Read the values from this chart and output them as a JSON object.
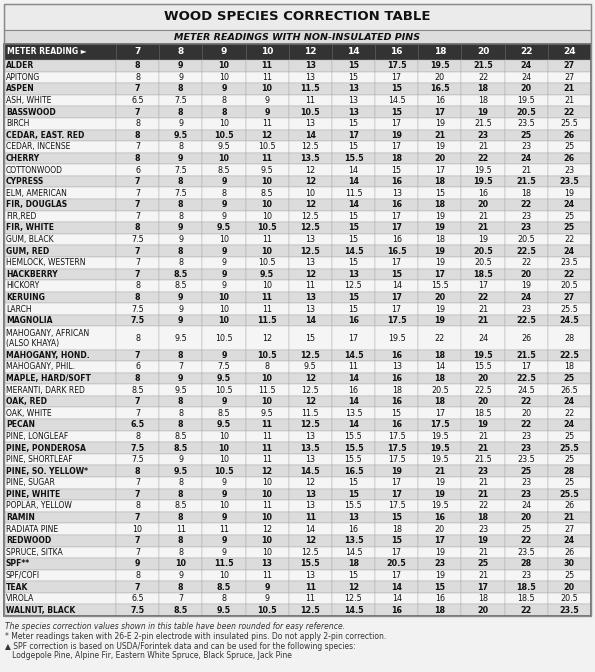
{
  "title": "WOOD SPECIES CORRECTION TABLE",
  "subtitle": "METER READINGS WITH NON-INSULATED PINS",
  "col_header": "METER READING ►",
  "columns": [
    "7",
    "8",
    "9",
    "10",
    "12",
    "14",
    "16",
    "18",
    "20",
    "22",
    "24"
  ],
  "rows": [
    {
      "name": "ALDER",
      "bold": true,
      "values": [
        "8",
        "9",
        "10",
        "11",
        "13",
        "15",
        "17.5",
        "19.5",
        "21.5",
        "24",
        "27"
      ]
    },
    {
      "name": "APITONG",
      "bold": false,
      "values": [
        "8",
        "9",
        "10",
        "11",
        "13",
        "15",
        "17",
        "20",
        "22",
        "24",
        "27"
      ]
    },
    {
      "name": "ASPEN",
      "bold": true,
      "values": [
        "7",
        "8",
        "9",
        "10",
        "11.5",
        "13",
        "15",
        "16.5",
        "18",
        "20",
        "21"
      ]
    },
    {
      "name": "ASH, WHITE",
      "bold": false,
      "values": [
        "6.5",
        "7.5",
        "8",
        "9",
        "11",
        "13",
        "14.5",
        "16",
        "18",
        "19.5",
        "21"
      ]
    },
    {
      "name": "BASSWOOD",
      "bold": true,
      "values": [
        "7",
        "8",
        "8",
        "9",
        "10.5",
        "13",
        "15",
        "17",
        "19",
        "20.5",
        "22"
      ]
    },
    {
      "name": "BIRCH",
      "bold": false,
      "values": [
        "8",
        "9",
        "10",
        "11",
        "13",
        "15",
        "17",
        "19",
        "21.5",
        "23.5",
        "25.5"
      ]
    },
    {
      "name": "CEDAR, EAST. RED",
      "bold": true,
      "values": [
        "8",
        "9.5",
        "10.5",
        "12",
        "14",
        "17",
        "19",
        "21",
        "23",
        "25",
        "26"
      ]
    },
    {
      "name": "CEDAR, INCENSE",
      "bold": false,
      "values": [
        "7",
        "8",
        "9.5",
        "10.5",
        "12.5",
        "15",
        "17",
        "19",
        "21",
        "23",
        "25"
      ]
    },
    {
      "name": "CHERRY",
      "bold": true,
      "values": [
        "8",
        "9",
        "10",
        "11",
        "13.5",
        "15.5",
        "18",
        "20",
        "22",
        "24",
        "26"
      ]
    },
    {
      "name": "COTTONWOOD",
      "bold": false,
      "values": [
        "6",
        "7.5",
        "8.5",
        "9.5",
        "12",
        "14",
        "15",
        "17",
        "19.5",
        "21",
        "23"
      ]
    },
    {
      "name": "CYPRESS",
      "bold": true,
      "values": [
        "7",
        "8",
        "9",
        "10",
        "12",
        "14",
        "16",
        "18",
        "19.5",
        "21.5",
        "23.5"
      ]
    },
    {
      "name": "ELM, AMERICAN",
      "bold": false,
      "values": [
        "7",
        "7.5",
        "8",
        "8.5",
        "10",
        "11.5",
        "13",
        "15",
        "16",
        "18",
        "19"
      ]
    },
    {
      "name": "FIR, DOUGLAS",
      "bold": true,
      "values": [
        "7",
        "8",
        "9",
        "10",
        "12",
        "14",
        "16",
        "18",
        "20",
        "22",
        "24"
      ]
    },
    {
      "name": "FIR,RED",
      "bold": false,
      "values": [
        "7",
        "8",
        "9",
        "10",
        "12.5",
        "15",
        "17",
        "19",
        "21",
        "23",
        "25"
      ]
    },
    {
      "name": "FIR, WHITE",
      "bold": true,
      "values": [
        "8",
        "9",
        "9.5",
        "10.5",
        "12.5",
        "15",
        "17",
        "19",
        "21",
        "23",
        "25"
      ]
    },
    {
      "name": "GUM, BLACK",
      "bold": false,
      "values": [
        "7.5",
        "9",
        "10",
        "11",
        "13",
        "15",
        "16",
        "18",
        "19",
        "20.5",
        "22"
      ]
    },
    {
      "name": "GUM, RED",
      "bold": true,
      "values": [
        "7",
        "8",
        "9",
        "10",
        "12.5",
        "14.5",
        "16.5",
        "19",
        "20.5",
        "22.5",
        "24"
      ]
    },
    {
      "name": "HEMLOCK, WESTERN",
      "bold": false,
      "values": [
        "7",
        "8",
        "9",
        "10.5",
        "13",
        "15",
        "17",
        "19",
        "20.5",
        "22",
        "23.5"
      ]
    },
    {
      "name": "HACKBERRY",
      "bold": true,
      "values": [
        "7",
        "8.5",
        "9",
        "9.5",
        "12",
        "13",
        "15",
        "17",
        "18.5",
        "20",
        "22"
      ]
    },
    {
      "name": "HICKORY",
      "bold": false,
      "values": [
        "8",
        "8.5",
        "9",
        "10",
        "11",
        "12.5",
        "14",
        "15.5",
        "17",
        "19",
        "20.5"
      ]
    },
    {
      "name": "KERUING",
      "bold": true,
      "values": [
        "8",
        "9",
        "10",
        "11",
        "13",
        "15",
        "17",
        "20",
        "22",
        "24",
        "27"
      ]
    },
    {
      "name": "LARCH",
      "bold": false,
      "values": [
        "7.5",
        "9",
        "10",
        "11",
        "13",
        "15",
        "17",
        "19",
        "21",
        "23",
        "25.5"
      ]
    },
    {
      "name": "MAGNOLIA",
      "bold": true,
      "values": [
        "7.5",
        "9",
        "10",
        "11.5",
        "14",
        "16",
        "17.5",
        "19",
        "21",
        "22.5",
        "24.5"
      ]
    },
    {
      "name": "MAHOGANY, AFRICAN\n(ALSO KHAYA)",
      "bold": false,
      "values": [
        "8",
        "9.5",
        "10.5",
        "12",
        "15",
        "17",
        "19.5",
        "22",
        "24",
        "26",
        "28"
      ]
    },
    {
      "name": "MAHOGANY, HOND.",
      "bold": true,
      "values": [
        "7",
        "8",
        "9",
        "10.5",
        "12.5",
        "14.5",
        "16",
        "18",
        "19.5",
        "21.5",
        "22.5"
      ]
    },
    {
      "name": "MAHOGANY, PHIL.",
      "bold": false,
      "values": [
        "6",
        "7",
        "7.5",
        "8",
        "9.5",
        "11",
        "13",
        "14",
        "15.5",
        "17",
        "18"
      ]
    },
    {
      "name": "MAPLE, HARD/SOFT",
      "bold": true,
      "values": [
        "8",
        "9",
        "9.5",
        "10",
        "12",
        "14",
        "16",
        "18",
        "20",
        "22.5",
        "25"
      ]
    },
    {
      "name": "MERANTI, DARK RED",
      "bold": false,
      "values": [
        "8.5",
        "9.5",
        "10.5",
        "11.5",
        "12.5",
        "16",
        "18",
        "20.5",
        "22.5",
        "24.5",
        "26.5"
      ]
    },
    {
      "name": "OAK, RED",
      "bold": true,
      "values": [
        "7",
        "8",
        "9",
        "10",
        "12",
        "14",
        "16",
        "18",
        "20",
        "22",
        "24"
      ]
    },
    {
      "name": "OAK, WHITE",
      "bold": false,
      "values": [
        "7",
        "8",
        "8.5",
        "9.5",
        "11.5",
        "13.5",
        "15",
        "17",
        "18.5",
        "20",
        "22"
      ]
    },
    {
      "name": "PECAN",
      "bold": true,
      "values": [
        "6.5",
        "8",
        "9.5",
        "11",
        "12.5",
        "14",
        "16",
        "17.5",
        "19",
        "22",
        "24"
      ]
    },
    {
      "name": "PINE, LONGLEAF",
      "bold": false,
      "values": [
        "8",
        "8.5",
        "10",
        "11",
        "13",
        "15.5",
        "17.5",
        "19.5",
        "21",
        "23",
        "25"
      ]
    },
    {
      "name": "PINE, PONDEROSA",
      "bold": true,
      "values": [
        "7.5",
        "8.5",
        "10",
        "11",
        "13.5",
        "15.5",
        "17.5",
        "19.5",
        "21",
        "23",
        "25.5"
      ]
    },
    {
      "name": "PINE, SHORTLEAF",
      "bold": false,
      "values": [
        "7.5",
        "9",
        "10",
        "11",
        "13",
        "15.5",
        "17.5",
        "19.5",
        "21.5",
        "23.5",
        "25"
      ]
    },
    {
      "name": "PINE, SO. YELLOW*",
      "bold": true,
      "values": [
        "8",
        "9.5",
        "10.5",
        "12",
        "14.5",
        "16.5",
        "19",
        "21",
        "23",
        "25",
        "28"
      ]
    },
    {
      "name": "PINE, SUGAR",
      "bold": false,
      "values": [
        "7",
        "8",
        "9",
        "10",
        "12",
        "15",
        "17",
        "19",
        "21",
        "23",
        "25"
      ]
    },
    {
      "name": "PINE, WHITE",
      "bold": true,
      "values": [
        "7",
        "8",
        "9",
        "10",
        "13",
        "15",
        "17",
        "19",
        "21",
        "23",
        "25.5"
      ]
    },
    {
      "name": "POPLAR, YELLOW",
      "bold": false,
      "values": [
        "8",
        "8.5",
        "10",
        "11",
        "13",
        "15.5",
        "17.5",
        "19.5",
        "22",
        "24",
        "26"
      ]
    },
    {
      "name": "RAMIN",
      "bold": true,
      "values": [
        "7",
        "8",
        "9",
        "10",
        "11",
        "13",
        "15",
        "16",
        "18",
        "20",
        "21"
      ]
    },
    {
      "name": "RADIATA PINE",
      "bold": false,
      "values": [
        "10",
        "11",
        "11",
        "12",
        "14",
        "16",
        "18",
        "20",
        "23",
        "25",
        "27"
      ]
    },
    {
      "name": "REDWOOD",
      "bold": true,
      "values": [
        "7",
        "8",
        "9",
        "10",
        "12",
        "13.5",
        "15",
        "17",
        "19",
        "22",
        "24"
      ]
    },
    {
      "name": "SPRUCE, SITKA",
      "bold": false,
      "values": [
        "7",
        "8",
        "9",
        "10",
        "12.5",
        "14.5",
        "17",
        "19",
        "21",
        "23.5",
        "26"
      ]
    },
    {
      "name": "SPF**",
      "bold": true,
      "values": [
        "9",
        "10",
        "11.5",
        "13",
        "15.5",
        "18",
        "20.5",
        "23",
        "25",
        "28",
        "30"
      ]
    },
    {
      "name": "SPF/COFI",
      "bold": false,
      "values": [
        "8",
        "9",
        "10",
        "11",
        "13",
        "15",
        "17",
        "19",
        "21",
        "23",
        "25"
      ]
    },
    {
      "name": "TEAK",
      "bold": true,
      "values": [
        "7",
        "8",
        "8.5",
        "9",
        "11",
        "12",
        "14",
        "15",
        "17",
        "18.5",
        "20"
      ]
    },
    {
      "name": "VIROLA",
      "bold": false,
      "values": [
        "6.5",
        "7",
        "8",
        "9",
        "11",
        "12.5",
        "14",
        "16",
        "18",
        "18.5",
        "20.5"
      ]
    },
    {
      "name": "WALNUT, BLACK",
      "bold": true,
      "values": [
        "7.5",
        "8.5",
        "9.5",
        "10.5",
        "12.5",
        "14.5",
        "16",
        "18",
        "20",
        "22",
        "23.5"
      ]
    }
  ],
  "footnote1": "The species correction values shown in this table have been rounded for easy reference.",
  "footnote2": "* Meter readings taken with 26-E 2-pin electrode with insulated pins. Do not apply 2-pin correction.",
  "footnote3a": "▲ SPF correction is based on USDA/Forintek data and can be used for the following species:",
  "footnote3b": "   Lodgepole Pine, Alpine Fir, Eastern White Spruce, Black Spruce, Jack Pine"
}
